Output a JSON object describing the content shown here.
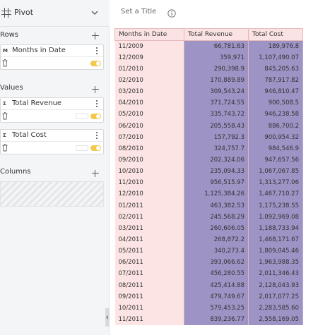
{
  "sidebar": {
    "title": "Pivot",
    "rows_label": "Rows",
    "values_label": "Values",
    "columns_label": "Columns",
    "rows": [
      {
        "badge": "M",
        "name": "Months in Date"
      }
    ],
    "values": [
      {
        "badge": "Σ",
        "name": "Total Revenue"
      },
      {
        "badge": "Σ",
        "name": "Total Cost"
      }
    ]
  },
  "title_bar": {
    "placeholder": "Set a Title"
  },
  "table": {
    "headers": [
      "Months in Date",
      "Total Revenue",
      "Total Cost"
    ],
    "rows": [
      [
        "11/2009",
        "66,781.63",
        "189,976.8"
      ],
      [
        "12/2009",
        "359,971",
        "1,107,490.07"
      ],
      [
        "01/2010",
        "290,398.9",
        "845,205.63"
      ],
      [
        "02/2010",
        "170,889.89",
        "787,917.82"
      ],
      [
        "03/2010",
        "309,543.24",
        "946,810.47"
      ],
      [
        "04/2010",
        "371,724.55",
        "900,508.5"
      ],
      [
        "05/2010",
        "335,743.72",
        "946,238.58"
      ],
      [
        "06/2010",
        "205,558.43",
        "886,700.2"
      ],
      [
        "07/2010",
        "157,792.3",
        "900,954.32"
      ],
      [
        "08/2010",
        "324,757.7",
        "984,546.9"
      ],
      [
        "09/2010",
        "202,324.06",
        "947,657.56"
      ],
      [
        "10/2010",
        "235,094.33",
        "1,067,067.85"
      ],
      [
        "11/2010",
        "956,515.97",
        "1,313,277.06"
      ],
      [
        "12/2010",
        "1,125,384.26",
        "1,467,710.27"
      ],
      [
        "01/2011",
        "463,382.53",
        "1,175,238.55"
      ],
      [
        "02/2011",
        "245,568.29",
        "1,092,969.08"
      ],
      [
        "03/2011",
        "260,606.05",
        "1,188,733.94"
      ],
      [
        "04/2011",
        "268,872.2",
        "1,468,171.67"
      ],
      [
        "05/2011",
        "340,273.4",
        "1,809,045.46"
      ],
      [
        "06/2011",
        "393,066.62",
        "1,963,988.35"
      ],
      [
        "07/2011",
        "456,280.55",
        "2,011,346.43"
      ],
      [
        "08/2011",
        "425,414.88",
        "2,128,043.93"
      ],
      [
        "09/2011",
        "479,749.67",
        "2,017,077.25"
      ],
      [
        "10/2011",
        "579,453.25",
        "2,283,585.60"
      ],
      [
        "11/2011",
        "839,236.77",
        "2,558,169.05"
      ]
    ]
  },
  "colors": {
    "dimension_bg": "#fde4e4",
    "metric_bg": "#9d93c5",
    "toggle_on": "#f2c94c"
  }
}
